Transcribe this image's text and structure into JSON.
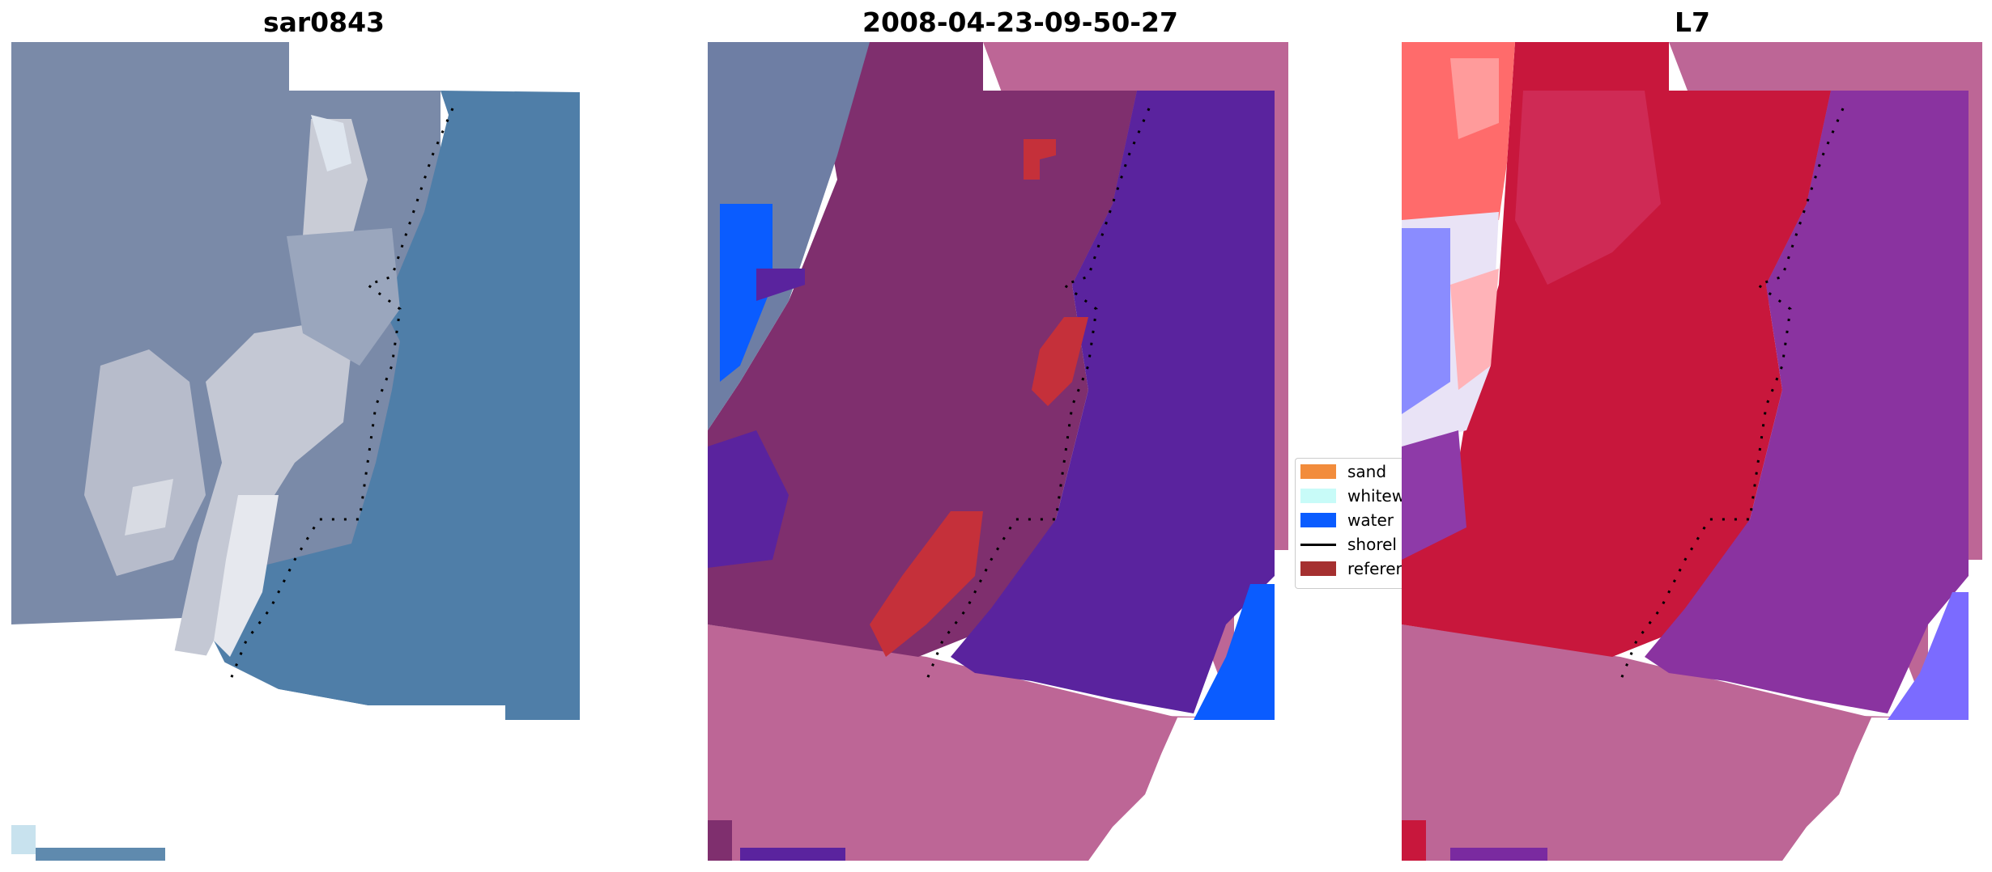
{
  "panels": [
    {
      "title": "sar0843"
    },
    {
      "title": "2008-04-23-09-50-27"
    },
    {
      "title": "L7"
    }
  ],
  "legend": {
    "items": [
      {
        "label": "sand",
        "color": "#f28c3c"
      },
      {
        "label": "whitew",
        "color": "#c8fbf8"
      },
      {
        "label": "water",
        "color": "#0a5cff"
      },
      {
        "label": "shorel",
        "color": "#000000"
      },
      {
        "label": "referer",
        "color": "#a53030"
      }
    ]
  },
  "colors": {
    "background": "#ffffff",
    "rgb_ocean": "#4f7ea8",
    "rgb_land": "#7a8aa8",
    "class_water_purple": "#5a239e",
    "class_land_magenta": "#7f2f6e",
    "nodata_pink": "#bd6696",
    "reference_red": "#c5303a",
    "mndwi_red": "#c8173c",
    "mndwi_purple": "#8a33a0"
  }
}
